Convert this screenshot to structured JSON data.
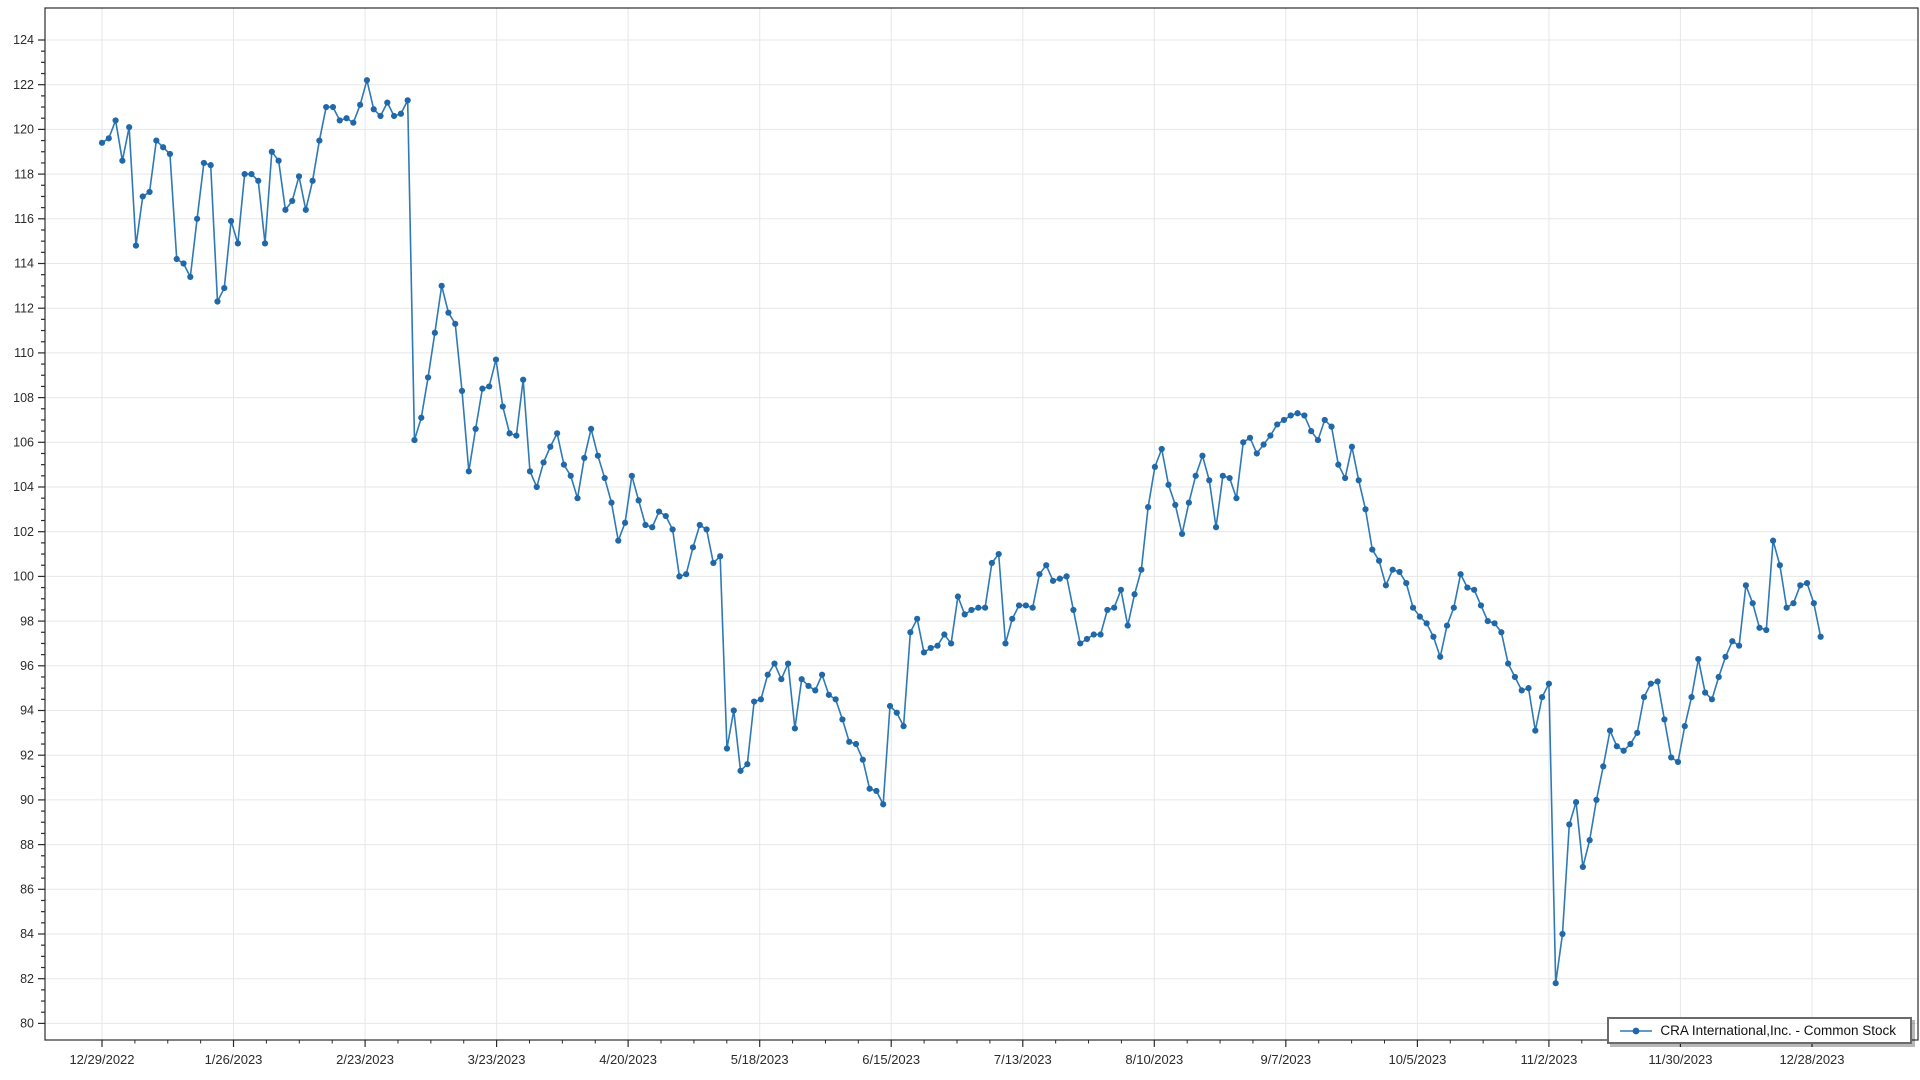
{
  "chart_data": {
    "type": "line",
    "title": "",
    "xlabel": "",
    "ylabel": "",
    "grid": "on",
    "legend_position": "bottom-right",
    "background_color": "#ffffff",
    "grid_color": "#e7e7e7",
    "axis_color": "#2b2b2b",
    "label_color": "#2b2b2b",
    "x_tick_labels": [
      "12/29/2022",
      "1/26/2023",
      "2/23/2023",
      "3/23/2023",
      "4/20/2023",
      "5/18/2023",
      "6/15/2023",
      "7/13/2023",
      "8/10/2023",
      "9/7/2023",
      "10/5/2023",
      "11/2/2023",
      "11/30/2023",
      "12/28/2023"
    ],
    "x_tick_indices": [
      0,
      19.36,
      38.73,
      58.09,
      77.45,
      96.82,
      116.18,
      135.55,
      154.91,
      174.27,
      193.64,
      213.0,
      232.36,
      251.73
    ],
    "y_ticks": {
      "min": 80,
      "max": 124,
      "step": 2,
      "minor_step": 0.5
    },
    "ylim": [
      79.2,
      125.4
    ],
    "series": [
      {
        "name": "CRA International,Inc. - Common Stock",
        "color": "#2e79b7",
        "marker_color": "#2068a8",
        "marker": "circle",
        "values": [
          119.4,
          119.6,
          120.4,
          118.6,
          120.1,
          114.8,
          117.0,
          117.2,
          119.5,
          119.2,
          118.9,
          114.2,
          114.0,
          113.4,
          116.0,
          118.5,
          118.4,
          112.3,
          112.9,
          115.9,
          114.9,
          118.0,
          118.0,
          117.7,
          114.9,
          119.0,
          118.6,
          116.4,
          116.8,
          117.9,
          116.4,
          117.7,
          119.5,
          121.0,
          121.0,
          120.4,
          120.5,
          120.3,
          121.1,
          122.2,
          120.9,
          120.6,
          121.2,
          120.6,
          120.7,
          121.3,
          106.1,
          107.1,
          108.9,
          110.9,
          113.0,
          111.8,
          111.3,
          108.3,
          104.7,
          106.6,
          108.4,
          108.5,
          109.7,
          107.6,
          106.4,
          106.3,
          108.8,
          104.7,
          104.0,
          105.1,
          105.8,
          106.4,
          105.0,
          104.5,
          103.5,
          105.3,
          106.6,
          105.4,
          104.4,
          103.3,
          101.6,
          102.4,
          104.5,
          103.4,
          102.3,
          102.2,
          102.9,
          102.7,
          102.1,
          100.0,
          100.1,
          101.3,
          102.3,
          102.1,
          100.6,
          100.9,
          92.3,
          94.0,
          91.3,
          91.6,
          94.4,
          94.5,
          95.6,
          96.1,
          95.4,
          96.1,
          93.2,
          95.4,
          95.1,
          94.9,
          95.6,
          94.7,
          94.5,
          93.6,
          92.6,
          92.5,
          91.8,
          90.5,
          90.4,
          89.8,
          94.2,
          93.9,
          93.3,
          97.5,
          98.1,
          96.6,
          96.8,
          96.9,
          97.4,
          97.0,
          99.1,
          98.3,
          98.5,
          98.6,
          98.6,
          100.6,
          101.0,
          97.0,
          98.1,
          98.7,
          98.7,
          98.6,
          100.1,
          100.5,
          99.8,
          99.9,
          100.0,
          98.5,
          97.0,
          97.2,
          97.4,
          97.4,
          98.5,
          98.6,
          99.4,
          97.8,
          99.2,
          100.3,
          103.1,
          104.9,
          105.7,
          104.1,
          103.2,
          101.9,
          103.3,
          104.5,
          105.4,
          104.3,
          102.2,
          104.5,
          104.4,
          103.5,
          106.0,
          106.2,
          105.5,
          105.9,
          106.3,
          106.8,
          107.0,
          107.2,
          107.3,
          107.2,
          106.5,
          106.1,
          107.0,
          106.7,
          105.0,
          104.4,
          105.8,
          104.3,
          103.0,
          101.2,
          100.7,
          99.6,
          100.3,
          100.2,
          99.7,
          98.6,
          98.2,
          97.9,
          97.3,
          96.4,
          97.8,
          98.6,
          100.1,
          99.5,
          99.4,
          98.7,
          98.0,
          97.9,
          97.5,
          96.1,
          95.5,
          94.9,
          95.0,
          93.1,
          94.6,
          95.2,
          81.8,
          84.0,
          88.9,
          89.9,
          87.0,
          88.2,
          90.0,
          91.5,
          93.1,
          92.4,
          92.2,
          92.5,
          93.0,
          94.6,
          95.2,
          95.3,
          93.6,
          91.9,
          91.7,
          93.3,
          94.6,
          96.3,
          94.8,
          94.5,
          95.5,
          96.4,
          97.1,
          96.9,
          99.6,
          98.8,
          97.7,
          97.6,
          101.6,
          100.5,
          98.6,
          98.8,
          99.6,
          99.7,
          98.8,
          97.3
        ]
      }
    ]
  }
}
